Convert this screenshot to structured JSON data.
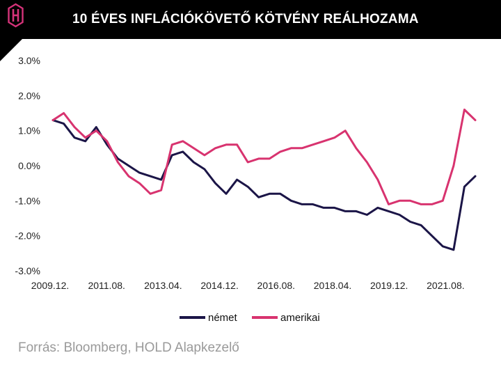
{
  "header": {
    "title": "10 ÉVES INFLÁCIÓKÖVETŐ KÖTVÉNY REÁLHOZAMA"
  },
  "logo": {
    "icon": "hold-logo-icon",
    "color": "#d6337a"
  },
  "source": "Forrás: Bloomberg, HOLD Alapkezelő",
  "chart_data": {
    "type": "line",
    "title": "10 ÉVES INFLÁCIÓKÖVETŐ KÖTVÉNY REÁLHOZAMA",
    "xlabel": "",
    "ylabel": "",
    "x_tick_labels": [
      "2009.12.",
      "2011.08.",
      "2013.04.",
      "2014.12.",
      "2016.08.",
      "2018.04.",
      "2019.12.",
      "2021.08."
    ],
    "y_tick_labels": [
      "3.0%",
      "2.0%",
      "1.0%",
      "0.0%",
      "-1.0%",
      "-2.0%",
      "-3.0%"
    ],
    "ylim": [
      -3.0,
      3.0
    ],
    "grid": false,
    "legend_position": "bottom",
    "x": [
      "2009.12.",
      "2010.04.",
      "2010.08.",
      "2010.12.",
      "2011.04.",
      "2011.08.",
      "2011.12.",
      "2012.04.",
      "2012.08.",
      "2012.12.",
      "2013.04.",
      "2013.08.",
      "2013.12.",
      "2014.04.",
      "2014.08.",
      "2014.12.",
      "2015.04.",
      "2015.08.",
      "2015.12.",
      "2016.04.",
      "2016.08.",
      "2016.12.",
      "2017.04.",
      "2017.08.",
      "2017.12.",
      "2018.04.",
      "2018.08.",
      "2018.12.",
      "2019.04.",
      "2019.08.",
      "2019.12.",
      "2020.04.",
      "2020.08.",
      "2020.12.",
      "2021.04.",
      "2021.08.",
      "2021.12.",
      "2022.04.",
      "2022.08.",
      "2022.10."
    ],
    "series": [
      {
        "name": "német",
        "color": "#1b1547",
        "values": [
          1.3,
          1.2,
          0.8,
          0.7,
          1.1,
          0.6,
          0.2,
          0.0,
          -0.2,
          -0.3,
          -0.4,
          0.3,
          0.4,
          0.1,
          -0.1,
          -0.5,
          -0.8,
          -0.4,
          -0.6,
          -0.9,
          -0.8,
          -0.8,
          -1.0,
          -1.1,
          -1.1,
          -1.2,
          -1.2,
          -1.3,
          -1.3,
          -1.4,
          -1.2,
          -1.3,
          -1.4,
          -1.6,
          -1.7,
          -2.0,
          -2.3,
          -2.4,
          -0.6,
          -0.3
        ]
      },
      {
        "name": "amerikai",
        "color": "#d8336f",
        "values": [
          1.3,
          1.5,
          1.1,
          0.8,
          1.0,
          0.7,
          0.1,
          -0.3,
          -0.5,
          -0.8,
          -0.7,
          0.6,
          0.7,
          0.5,
          0.3,
          0.5,
          0.6,
          0.6,
          0.1,
          0.2,
          0.2,
          0.4,
          0.5,
          0.5,
          0.6,
          0.7,
          0.8,
          1.0,
          0.5,
          0.1,
          -0.4,
          -1.1,
          -1.0,
          -1.0,
          -1.1,
          -1.1,
          -1.0,
          0.0,
          1.6,
          1.3
        ]
      }
    ]
  }
}
